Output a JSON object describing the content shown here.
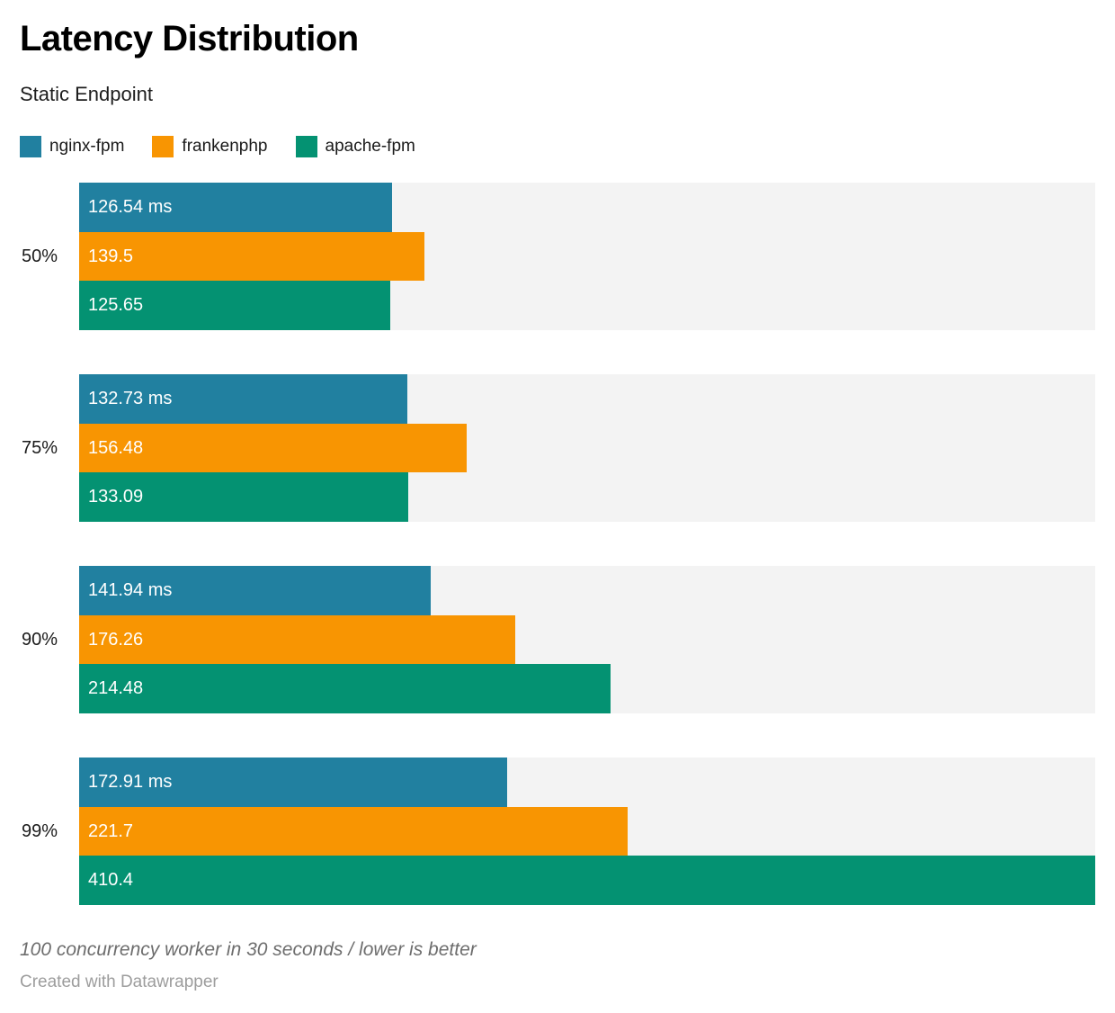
{
  "header": {
    "title": "Latency Distribution",
    "subtitle": "Static Endpoint"
  },
  "legend": [
    {
      "name": "nginx-fpm",
      "label": "nginx-fpm",
      "color": "#2180a0"
    },
    {
      "name": "frankenphp",
      "label": "frankenphp",
      "color": "#f89502"
    },
    {
      "name": "apache-fpm",
      "label": "apache-fpm",
      "color": "#049272"
    }
  ],
  "chart_data": {
    "type": "bar",
    "orientation": "horizontal",
    "title": "Latency Distribution",
    "subtitle": "Static Endpoint",
    "categories": [
      "50%",
      "75%",
      "90%",
      "99%"
    ],
    "series": [
      {
        "name": "nginx-fpm",
        "color": "#2180a0",
        "values": [
          126.54,
          132.73,
          141.94,
          172.91
        ],
        "labels": [
          "126.54 ms",
          "132.73 ms",
          "141.94 ms",
          "172.91 ms"
        ]
      },
      {
        "name": "frankenphp",
        "color": "#f89502",
        "values": [
          139.5,
          156.48,
          176.26,
          221.7
        ],
        "labels": [
          "139.5",
          "156.48",
          "176.26",
          "221.7"
        ]
      },
      {
        "name": "apache-fpm",
        "color": "#049272",
        "values": [
          125.65,
          133.09,
          214.48,
          410.4
        ],
        "labels": [
          "125.65",
          "133.09",
          "214.48",
          "410.4"
        ]
      }
    ],
    "value_unit": "ms",
    "xlim": [
      0,
      410.4
    ],
    "grid": false,
    "legend_position": "top",
    "plot_background": "#f3f3f3",
    "lower_is_better": true
  },
  "footer": {
    "note": "100 concurrency worker in 30 seconds / lower is better",
    "credit": "Created with Datawrapper"
  }
}
